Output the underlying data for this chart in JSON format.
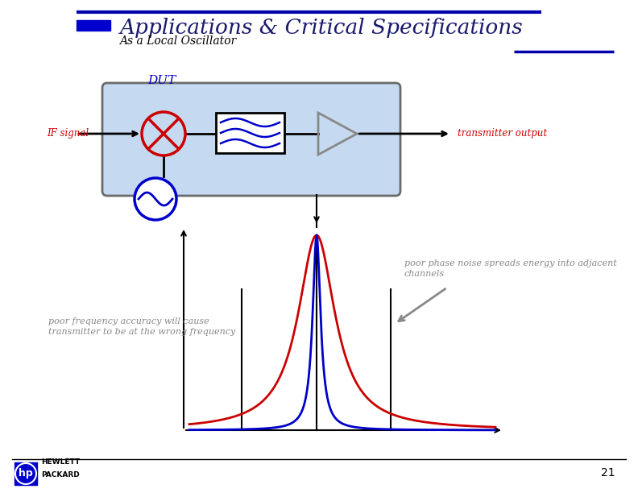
{
  "title": "Applications & Critical Specifications",
  "subtitle": "As a Local Oscillator",
  "page_number": "21",
  "title_color": "#1a1a6e",
  "subtitle_color": "#000000",
  "top_line_color": "#0000aa",
  "accent_line_color": "#0000aa",
  "dut_box_color": "#c5daf0",
  "dut_border_color": "#6a6a6a",
  "dut_label_color": "#0000cc",
  "mixer_color": "#cc0000",
  "filter_color": "#0000cc",
  "amp_color": "#888888",
  "signal_line_color": "#000000",
  "if_signal_label_color": "#cc0000",
  "tx_output_label_color": "#cc0000",
  "lo_circle_color": "#0000cc",
  "blue_peak_color": "#0000cc",
  "red_peak_color": "#cc0000",
  "arrow_color": "#888888",
  "annotation_color": "#888888",
  "phase_noise_text_line1": "poor phase noise spreads energy into adjacent",
  "phase_noise_text_line2": "channels",
  "freq_accuracy_text_line1": "poor frequency accuracy will cause",
  "freq_accuracy_text_line2": "transmitter to be at the wrong frequency",
  "if_signal_text": "IF signal",
  "tx_output_text": "transmitter output",
  "dut_text": "DUT",
  "background_color": "#ffffff",
  "hp_bar_color": "#0000cc",
  "top_bar_color": "#0000aa"
}
